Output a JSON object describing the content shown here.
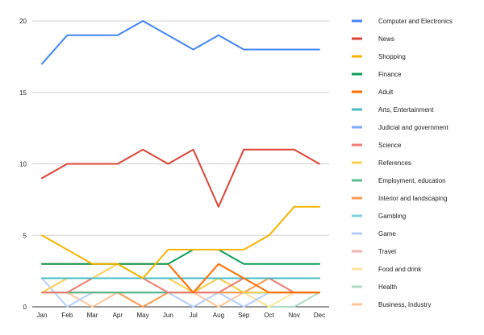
{
  "chart_data": {
    "type": "line",
    "title": "",
    "xlabel": "",
    "ylabel": "",
    "categories": [
      "Jan",
      "Feb",
      "Mar",
      "Apr",
      "May",
      "Jun",
      "Jul",
      "Aug",
      "Sep",
      "Oct",
      "Nov",
      "Dec"
    ],
    "ylim": [
      0,
      20
    ],
    "yticks": [
      0,
      5,
      10,
      15,
      20
    ],
    "grid": true,
    "legend_position": "right",
    "series": [
      {
        "name": "Computer and Electronics",
        "color": "#4285f4",
        "values": [
          17,
          19,
          19,
          19,
          20,
          19,
          18,
          19,
          18,
          18,
          18,
          18
        ]
      },
      {
        "name": "News",
        "color": "#db4437",
        "values": [
          9,
          10,
          10,
          10,
          11,
          10,
          11,
          7,
          11,
          11,
          11,
          10
        ]
      },
      {
        "name": "Shopping",
        "color": "#f4b400",
        "values": [
          5,
          4,
          3,
          3,
          2,
          4,
          4,
          4,
          4,
          5,
          7,
          7
        ]
      },
      {
        "name": "Finance",
        "color": "#0f9d58",
        "values": [
          3,
          3,
          3,
          3,
          3,
          3,
          4,
          4,
          3,
          3,
          3,
          3
        ]
      },
      {
        "name": "Adult",
        "color": "#ff6d01",
        "values": [
          3,
          3,
          3,
          3,
          3,
          3,
          1,
          3,
          2,
          1,
          1,
          1
        ]
      },
      {
        "name": "Arts, Entertainment",
        "color": "#46bdc6",
        "values": [
          2,
          2,
          2,
          2,
          2,
          2,
          2,
          2,
          2,
          2,
          2,
          2
        ]
      },
      {
        "name": "Judicial and government",
        "color": "#7baaf7",
        "values": [
          2,
          2,
          2,
          2,
          2,
          2,
          2,
          2,
          2,
          2,
          2,
          2
        ]
      },
      {
        "name": "Science",
        "color": "#f07b72",
        "values": [
          1,
          1,
          2,
          2,
          2,
          1,
          1,
          1,
          2,
          2,
          1,
          1
        ]
      },
      {
        "name": "References",
        "color": "#fcd04f",
        "values": [
          1,
          2,
          2,
          3,
          2,
          2,
          1,
          2,
          1,
          1,
          1,
          1
        ]
      },
      {
        "name": "Employment, education",
        "color": "#57bb8a",
        "values": [
          1,
          1,
          1,
          1,
          1,
          1,
          1,
          2,
          1,
          1,
          1,
          1
        ]
      },
      {
        "name": "Interior and landscaping",
        "color": "#ff994d",
        "values": [
          1,
          1,
          1,
          1,
          0,
          1,
          1,
          1,
          1,
          2,
          2,
          2
        ]
      },
      {
        "name": "Gambling",
        "color": "#7ed1d7",
        "values": [
          1,
          1,
          1,
          1,
          1,
          1,
          1,
          1,
          1,
          1,
          1,
          1
        ]
      },
      {
        "name": "Game",
        "color": "#b3cefb",
        "values": [
          2,
          0,
          1,
          1,
          1,
          1,
          0,
          1,
          0,
          1,
          1,
          1
        ]
      },
      {
        "name": "Travel",
        "color": "#f7b4ae",
        "values": [
          1,
          1,
          1,
          1,
          1,
          1,
          1,
          1,
          1,
          1,
          1,
          1
        ]
      },
      {
        "name": "Food and drink",
        "color": "#fde49b",
        "values": [
          1,
          1,
          1,
          1,
          1,
          1,
          1,
          1,
          1,
          0,
          1,
          1
        ]
      },
      {
        "name": "Health",
        "color": "#abdcc3",
        "values": [
          1,
          1,
          1,
          1,
          1,
          1,
          1,
          1,
          1,
          0,
          0,
          1
        ]
      },
      {
        "name": "Business, Industry",
        "color": "#ffc599",
        "values": [
          1,
          1,
          0,
          1,
          1,
          1,
          1,
          0,
          1,
          1,
          1,
          1
        ]
      }
    ]
  }
}
